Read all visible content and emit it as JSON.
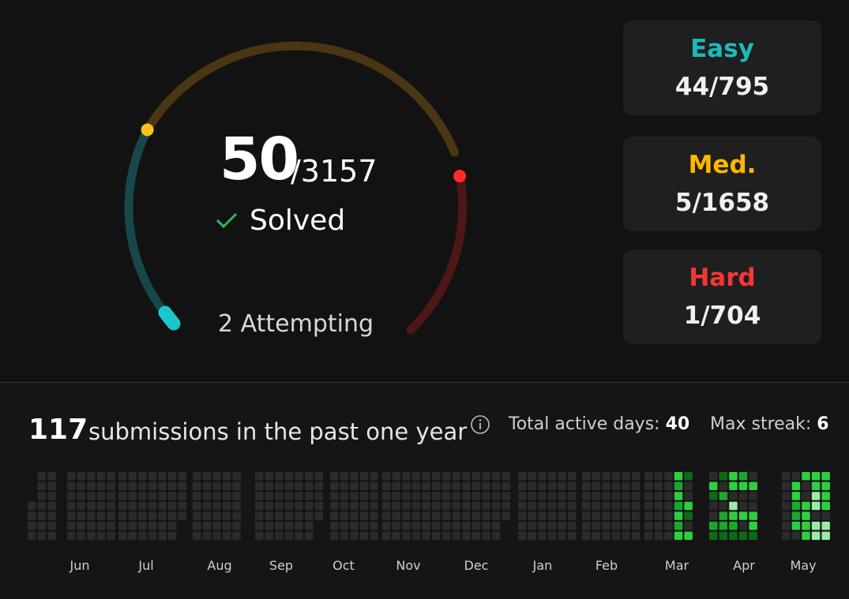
{
  "progress": {
    "solved": "50",
    "total": "/3157",
    "solved_label": "Solved",
    "attempting": "2 Attempting"
  },
  "difficulties": [
    {
      "label": "Easy",
      "value": "44/795",
      "color": "#1cbaba"
    },
    {
      "label": "Med.",
      "value": "5/1658",
      "color": "#ffb700"
    },
    {
      "label": "Hard",
      "value": "1/704",
      "color": "#f63636"
    }
  ],
  "submissions": {
    "count": "117",
    "text": "submissions in the past one year",
    "active_days_label": "Total active days:",
    "active_days_value": "40",
    "max_streak_label": "Max streak:",
    "max_streak_value": "6"
  },
  "months": [
    "Jun",
    "Jul",
    "Aug",
    "Sep",
    "Oct",
    "Nov",
    "Dec",
    "Jan",
    "Feb",
    "Mar",
    "Apr",
    "May"
  ],
  "colors": {
    "background": "#121212",
    "card": "#1f1f1f",
    "empty_cell": "#2b2b2b",
    "green_light": "#9be9a8",
    "green_bright": "#2ecf3f",
    "green_mid": "#19a82d",
    "green_dark": "#0c6a1a",
    "accent_easy": "#1cbaba",
    "accent_medium": "#ffb700",
    "accent_hard": "#f63636"
  },
  "icons": [
    "check-icon",
    "info-icon"
  ]
}
